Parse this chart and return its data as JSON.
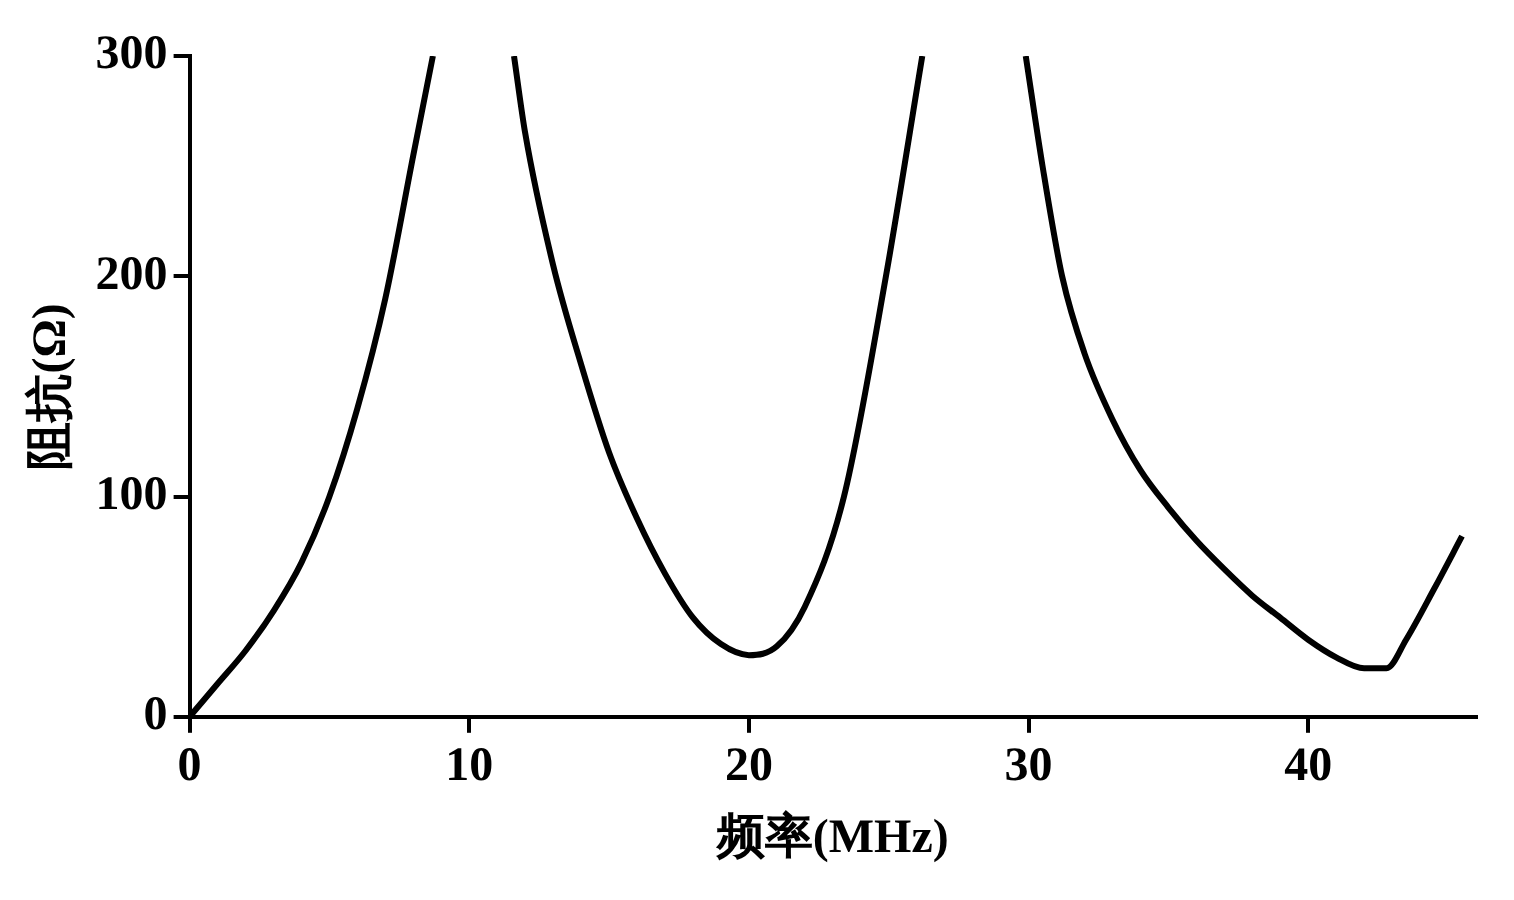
{
  "chart_data": {
    "type": "line",
    "xlabel": "频率(MHz)",
    "ylabel": "阻抗(Ω)",
    "xlim": [
      0,
      46
    ],
    "ylim": [
      0,
      300
    ],
    "xticks": [
      0,
      10,
      20,
      30,
      40
    ],
    "yticks": [
      0,
      100,
      200,
      300
    ],
    "grid": false,
    "legend": false,
    "marker": "none",
    "line_style": "solid",
    "series": [
      {
        "color": "#000000",
        "x": [
          0,
          1,
          2,
          3,
          4,
          5,
          6,
          7,
          8,
          8.7
        ],
        "values": [
          0,
          15,
          30,
          48,
          70,
          100,
          140,
          190,
          255,
          300
        ]
      },
      {
        "color": "#000000",
        "x": [
          11.6,
          12,
          13,
          14,
          15,
          16,
          17,
          18,
          19,
          20,
          21,
          22,
          23.4,
          24.9,
          26.2
        ],
        "values": [
          300,
          265,
          205,
          160,
          120,
          90,
          65,
          45,
          33,
          28,
          32,
          50,
          100,
          200,
          300
        ]
      },
      {
        "color": "#000000",
        "x": [
          29.9,
          30.5,
          31.2,
          32,
          33,
          34,
          35,
          36,
          37,
          38,
          39,
          40,
          41,
          42,
          42.8,
          43.5,
          44.5,
          45.5
        ],
        "values": [
          300,
          250,
          200,
          165,
          135,
          112,
          95,
          80,
          67,
          55,
          45,
          35,
          27,
          22,
          22,
          35,
          58,
          82
        ]
      }
    ]
  }
}
